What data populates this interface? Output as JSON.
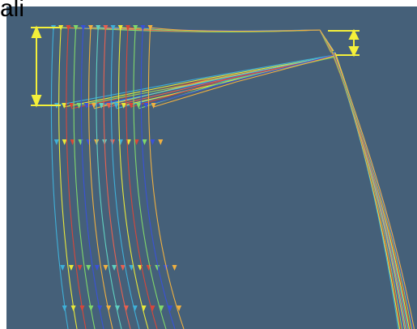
{
  "header": {
    "text": "ali"
  }
}
